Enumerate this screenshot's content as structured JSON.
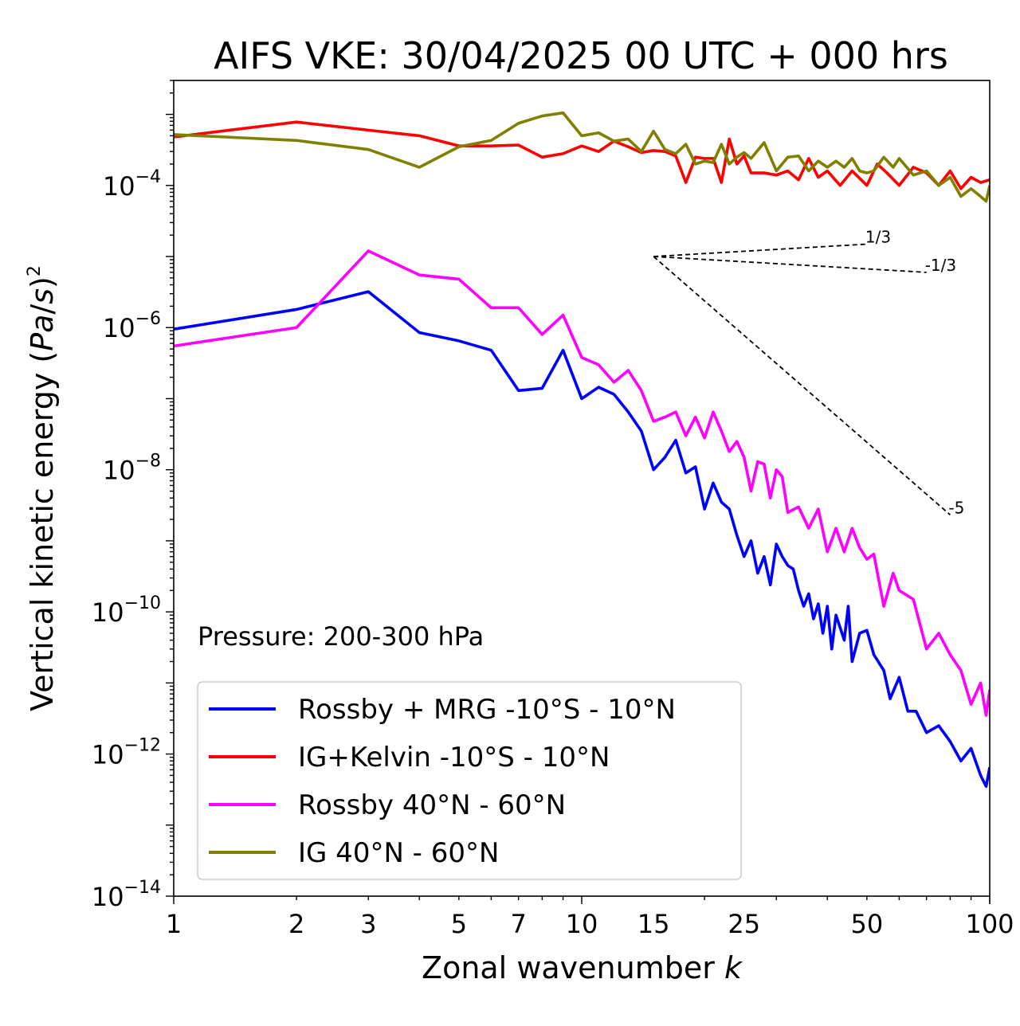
{
  "chart_data": {
    "type": "line",
    "title": "AIFS VKE: 30/04/2025 00 UTC + 000 hrs",
    "xlabel": "Zonal wavenumber k",
    "ylabel": "Vertical kinetic energy (Pa/s)²",
    "xscale": "log",
    "yscale": "log",
    "xlim": [
      1,
      100
    ],
    "ylim": [
      1e-14,
      0.003
    ],
    "xticks": [
      1,
      2,
      3,
      5,
      7,
      10,
      15,
      25,
      50,
      100
    ],
    "xtick_labels": [
      "1",
      "2",
      "3",
      "5",
      "7",
      "10",
      "15",
      "25",
      "50",
      "100"
    ],
    "yticks": [
      -14,
      -12,
      -10,
      -8,
      -6,
      -4
    ],
    "annotation": "Pressure: 200-300 hPa",
    "legend_position": "lower-left",
    "series": [
      {
        "name": "Rossby + MRG -10°S - 10°N",
        "color": "#0000ff",
        "points": [
          [
            1,
            9.5e-07
          ],
          [
            2,
            1.8e-06
          ],
          [
            3,
            3.2e-06
          ],
          [
            4,
            8.5e-07
          ],
          [
            5,
            6.5e-07
          ],
          [
            6,
            4.8e-07
          ],
          [
            7,
            1.3e-07
          ],
          [
            8,
            1.4e-07
          ],
          [
            9,
            4.8e-07
          ],
          [
            10,
            1e-07
          ],
          [
            11,
            1.45e-07
          ],
          [
            12,
            1.15e-07
          ],
          [
            13,
            6.5e-08
          ],
          [
            14,
            3.5e-08
          ],
          [
            15,
            1e-08
          ],
          [
            16,
            1.5e-08
          ],
          [
            17,
            2.6e-08
          ],
          [
            18,
            9e-09
          ],
          [
            19,
            1.1e-08
          ],
          [
            20,
            2.8e-09
          ],
          [
            21,
            6.5e-09
          ],
          [
            22,
            3.5e-09
          ],
          [
            23,
            2.8e-09
          ],
          [
            24,
            1.2e-09
          ],
          [
            25,
            6e-10
          ],
          [
            26,
            1e-09
          ],
          [
            27,
            3.5e-10
          ],
          [
            28,
            6e-10
          ],
          [
            29,
            2.4e-10
          ],
          [
            30,
            9e-10
          ],
          [
            31,
            6e-10
          ],
          [
            32,
            4.5e-10
          ],
          [
            33,
            4e-10
          ],
          [
            34,
            2e-10
          ],
          [
            35,
            1.2e-10
          ],
          [
            36,
            1.8e-10
          ],
          [
            37,
            8e-11
          ],
          [
            38,
            1.3e-10
          ],
          [
            39,
            5e-11
          ],
          [
            40,
            1.2e-10
          ],
          [
            41,
            3e-11
          ],
          [
            42,
            9e-11
          ],
          [
            44,
            4e-11
          ],
          [
            45,
            1.2e-10
          ],
          [
            46,
            2e-11
          ],
          [
            48,
            5e-11
          ],
          [
            50,
            5.5e-11
          ],
          [
            52,
            2.5e-11
          ],
          [
            55,
            1.5e-11
          ],
          [
            57,
            6e-12
          ],
          [
            60,
            1.2e-11
          ],
          [
            63,
            4e-12
          ],
          [
            66,
            4e-12
          ],
          [
            70,
            2e-12
          ],
          [
            75,
            2.5e-12
          ],
          [
            80,
            1.5e-12
          ],
          [
            85,
            8e-13
          ],
          [
            90,
            1.2e-12
          ],
          [
            95,
            5e-13
          ],
          [
            98,
            3.5e-13
          ],
          [
            100,
            6.5e-13
          ]
        ]
      },
      {
        "name": "IG+Kelvin -10°S - 10°N",
        "color": "#ff0000",
        "points": [
          [
            1,
            0.00048
          ],
          [
            2,
            0.00078
          ],
          [
            3,
            0.0006
          ],
          [
            4,
            0.0005
          ],
          [
            5,
            0.00036
          ],
          [
            6,
            0.00036
          ],
          [
            7,
            0.00037
          ],
          [
            8,
            0.00025
          ],
          [
            9,
            0.00028
          ],
          [
            10,
            0.00036
          ],
          [
            11,
            0.0003
          ],
          [
            12,
            0.00042
          ],
          [
            13,
            0.00035
          ],
          [
            14,
            0.00029
          ],
          [
            15,
            0.00031
          ],
          [
            16,
            0.0003
          ],
          [
            17,
            0.00026
          ],
          [
            18,
            0.00011
          ],
          [
            19,
            0.00025
          ],
          [
            20,
            0.00024
          ],
          [
            21,
            0.00024
          ],
          [
            22,
            0.00011
          ],
          [
            23,
            0.00045
          ],
          [
            24,
            0.0002
          ],
          [
            25,
            0.00026
          ],
          [
            26,
            0.00015
          ],
          [
            28,
            0.00015
          ],
          [
            30,
            0.00014
          ],
          [
            32,
            0.00016
          ],
          [
            34,
            0.00012
          ],
          [
            36,
            0.00024
          ],
          [
            38,
            0.00013
          ],
          [
            40,
            0.00016
          ],
          [
            43,
            0.0001
          ],
          [
            46,
            0.00016
          ],
          [
            50,
            0.0001
          ],
          [
            53,
            0.0002
          ],
          [
            56,
            0.00015
          ],
          [
            60,
            0.0001
          ],
          [
            65,
            0.00018
          ],
          [
            70,
            0.00015
          ],
          [
            75,
            0.0001
          ],
          [
            80,
            0.00016
          ],
          [
            85,
            9e-05
          ],
          [
            90,
            0.00013
          ],
          [
            95,
            0.00011
          ],
          [
            100,
            0.00012
          ]
        ]
      },
      {
        "name": "Rossby 40°N - 60°N",
        "color": "#ff00ff",
        "points": [
          [
            1,
            5.5e-07
          ],
          [
            2,
            1e-06
          ],
          [
            3,
            1.2e-05
          ],
          [
            4,
            5.5e-06
          ],
          [
            5,
            4.8e-06
          ],
          [
            6,
            1.9e-06
          ],
          [
            7,
            1.9e-06
          ],
          [
            8,
            8e-07
          ],
          [
            9,
            1.5e-06
          ],
          [
            10,
            3.8e-07
          ],
          [
            11,
            3e-07
          ],
          [
            12,
            1.7e-07
          ],
          [
            13,
            2.5e-07
          ],
          [
            14,
            1.3e-07
          ],
          [
            15,
            4.8e-08
          ],
          [
            16,
            5.5e-08
          ],
          [
            17,
            6.5e-08
          ],
          [
            18,
            3e-08
          ],
          [
            19,
            5.5e-08
          ],
          [
            20,
            2.8e-08
          ],
          [
            21,
            6.5e-08
          ],
          [
            22,
            3.5e-08
          ],
          [
            23,
            1.8e-08
          ],
          [
            24,
            2.5e-08
          ],
          [
            25,
            1.5e-08
          ],
          [
            26,
            5e-09
          ],
          [
            27,
            1.3e-08
          ],
          [
            28,
            1.2e-08
          ],
          [
            29,
            4e-09
          ],
          [
            30,
            1e-08
          ],
          [
            31,
            8e-09
          ],
          [
            32,
            2.5e-09
          ],
          [
            34,
            3e-09
          ],
          [
            36,
            1.5e-09
          ],
          [
            38,
            2.8e-09
          ],
          [
            40,
            7e-10
          ],
          [
            42,
            1.5e-09
          ],
          [
            44,
            7e-10
          ],
          [
            46,
            1.5e-09
          ],
          [
            48,
            8e-10
          ],
          [
            50,
            5.5e-10
          ],
          [
            52,
            6.5e-10
          ],
          [
            55,
            1.2e-10
          ],
          [
            58,
            3.5e-10
          ],
          [
            60,
            2e-10
          ],
          [
            65,
            1.5e-10
          ],
          [
            70,
            3e-11
          ],
          [
            75,
            5e-11
          ],
          [
            80,
            2.5e-11
          ],
          [
            85,
            1.5e-11
          ],
          [
            90,
            5e-12
          ],
          [
            95,
            1e-11
          ],
          [
            98,
            3.5e-12
          ],
          [
            100,
            8e-12
          ]
        ]
      },
      {
        "name": "IG 40°N - 60°N",
        "color": "#808000",
        "points": [
          [
            1,
            0.00052
          ],
          [
            2,
            0.00043
          ],
          [
            3,
            0.00032
          ],
          [
            4,
            0.00018
          ],
          [
            5,
            0.00035
          ],
          [
            6,
            0.00043
          ],
          [
            7,
            0.00075
          ],
          [
            8,
            0.00095
          ],
          [
            9,
            0.00105
          ],
          [
            10,
            0.0005
          ],
          [
            11,
            0.00055
          ],
          [
            12,
            0.00042
          ],
          [
            13,
            0.00045
          ],
          [
            14,
            0.0003
          ],
          [
            15,
            0.00058
          ],
          [
            16,
            0.00032
          ],
          [
            17,
            0.00028
          ],
          [
            18,
            0.00038
          ],
          [
            19,
            0.0002
          ],
          [
            20,
            0.00022
          ],
          [
            21,
            0.00021
          ],
          [
            22,
            0.00038
          ],
          [
            23,
            0.0002
          ],
          [
            24,
            0.00025
          ],
          [
            25,
            0.00029
          ],
          [
            26,
            0.00024
          ],
          [
            28,
            0.0004
          ],
          [
            30,
            0.00016
          ],
          [
            32,
            0.00025
          ],
          [
            34,
            0.00026
          ],
          [
            36,
            0.00016
          ],
          [
            38,
            0.00022
          ],
          [
            40,
            0.00018
          ],
          [
            42,
            0.00022
          ],
          [
            44,
            0.00018
          ],
          [
            46,
            0.00024
          ],
          [
            48,
            0.00016
          ],
          [
            50,
            0.00015
          ],
          [
            52,
            0.00016
          ],
          [
            55,
            0.00025
          ],
          [
            58,
            0.00018
          ],
          [
            60,
            0.00024
          ],
          [
            65,
            0.00014
          ],
          [
            70,
            0.00016
          ],
          [
            75,
            0.0001
          ],
          [
            80,
            0.00013
          ],
          [
            85,
            7e-05
          ],
          [
            90,
            9e-05
          ],
          [
            95,
            7e-05
          ],
          [
            98,
            6e-05
          ],
          [
            100,
            0.0001
          ]
        ]
      }
    ],
    "reference_lines": [
      {
        "label": "1/3",
        "slope": 0.3333,
        "k_start": 15,
        "k_end": 50,
        "y_start": 1e-05
      },
      {
        "label": "-1/3",
        "slope": -0.3333,
        "k_start": 15,
        "k_end": 70,
        "y_start": 1e-05
      },
      {
        "label": "-5",
        "slope": -5,
        "k_start": 15,
        "k_end": 80,
        "y_start": 1e-05
      }
    ]
  }
}
